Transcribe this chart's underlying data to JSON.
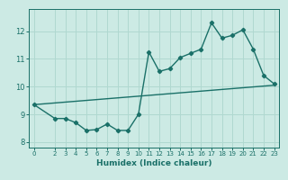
{
  "title": "",
  "xlabel": "Humidex (Indice chaleur)",
  "ylabel": "",
  "bg_color": "#cceae4",
  "grid_color": "#b0d8d0",
  "line_color": "#1a7068",
  "xlim": [
    -0.5,
    23.5
  ],
  "ylim": [
    7.8,
    12.8
  ],
  "xticks": [
    0,
    2,
    3,
    4,
    5,
    6,
    7,
    8,
    9,
    10,
    11,
    12,
    13,
    14,
    15,
    16,
    17,
    18,
    19,
    20,
    21,
    22,
    23
  ],
  "yticks": [
    8,
    9,
    10,
    11,
    12
  ],
  "line1_x": [
    0,
    2,
    3,
    4,
    5,
    6,
    7,
    8,
    9,
    10,
    11,
    12,
    13,
    14,
    15,
    16,
    17,
    18,
    19,
    20,
    21,
    22,
    23
  ],
  "line1_y": [
    9.35,
    8.85,
    8.85,
    8.7,
    8.42,
    8.45,
    8.65,
    8.42,
    8.42,
    9.0,
    11.25,
    10.55,
    10.65,
    11.05,
    11.2,
    11.35,
    12.3,
    11.75,
    11.85,
    12.05,
    11.35,
    10.4,
    10.1
  ],
  "line2_x": [
    0,
    23
  ],
  "line2_y": [
    9.35,
    10.05
  ],
  "marker": "D",
  "marker_size": 2.2,
  "line_width": 1.0
}
